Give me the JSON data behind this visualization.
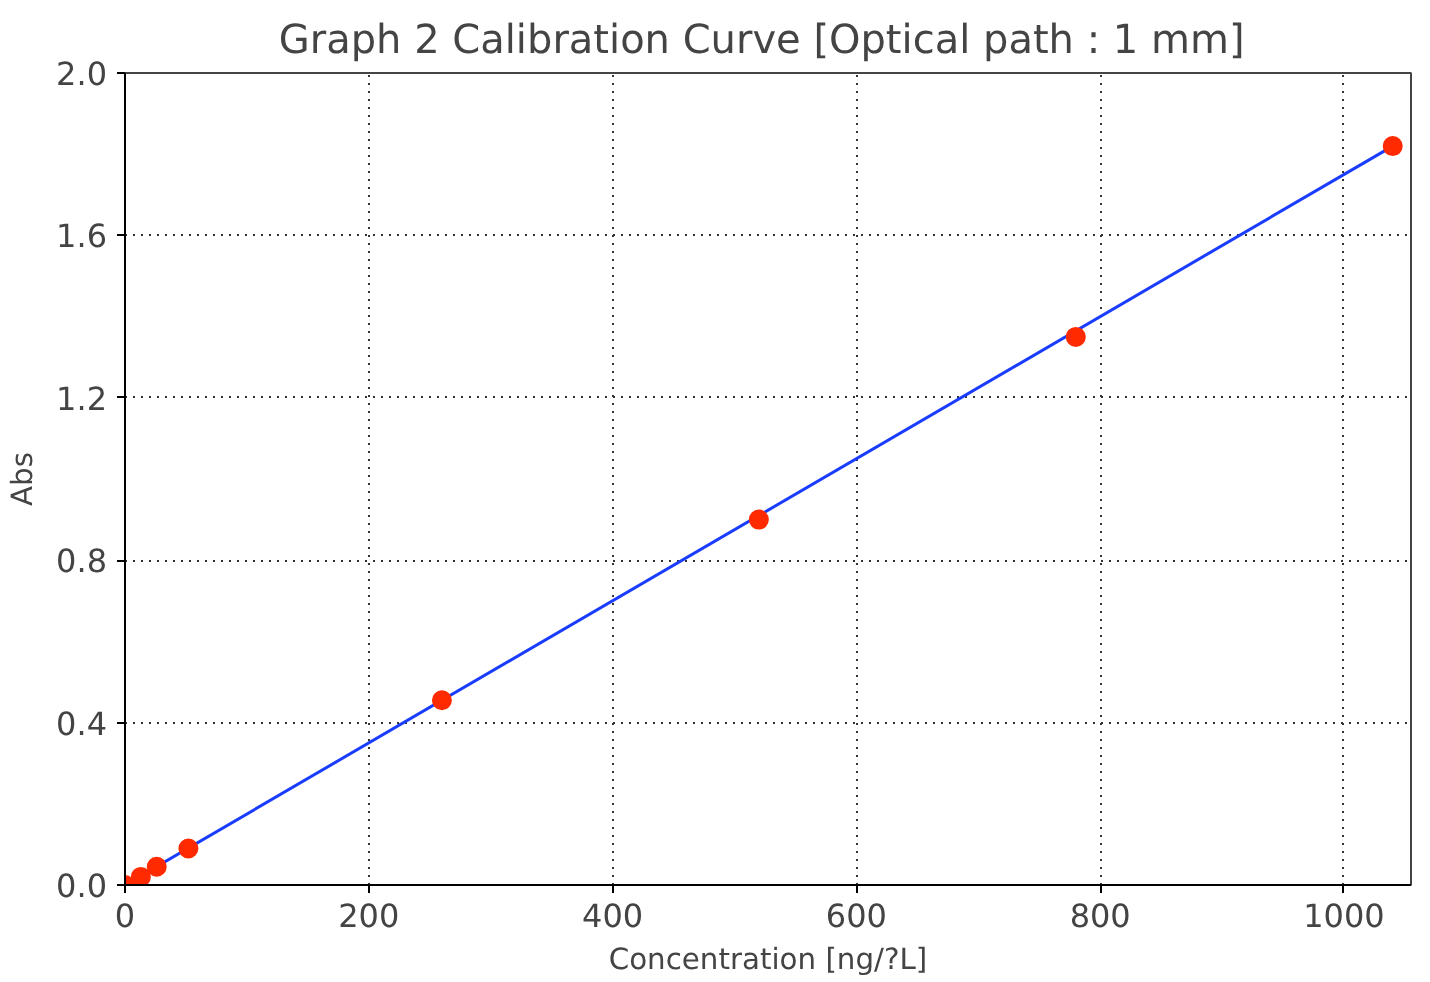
{
  "chart_data": {
    "type": "scatter",
    "title": "Graph 2  Calibration Curve [Optical path : 1 mm]",
    "xlabel": "Concentration [ng/?L]",
    "ylabel": "Abs",
    "series": [
      {
        "color": "#ff2a00",
        "marker": "circle",
        "x": [
          0,
          13,
          26,
          52,
          260,
          520,
          780,
          1040
        ],
        "values": [
          0.0,
          0.02,
          0.045,
          0.09,
          0.455,
          0.9,
          1.35,
          1.82
        ]
      },
      {
        "type": "line",
        "color": "#1a3cff",
        "marker": "none",
        "line_style": "solid",
        "x": [
          0,
          1040
        ],
        "values": [
          0.0,
          1.82
        ]
      }
    ],
    "xlim": [
      0,
      1055
    ],
    "ylim": [
      0,
      2.0
    ],
    "xticks": [
      0,
      200,
      400,
      600,
      800,
      1000
    ],
    "yticks": [
      {
        "value": 0,
        "label": "0.0"
      },
      {
        "value": 0.4,
        "label": "0.4"
      },
      {
        "value": 0.8,
        "label": "0.8"
      },
      {
        "value": 1.2,
        "label": "1.2"
      },
      {
        "value": 1.6,
        "label": "1.6"
      },
      {
        "value": 2.0,
        "label": "2.0"
      }
    ],
    "grid": true
  }
}
